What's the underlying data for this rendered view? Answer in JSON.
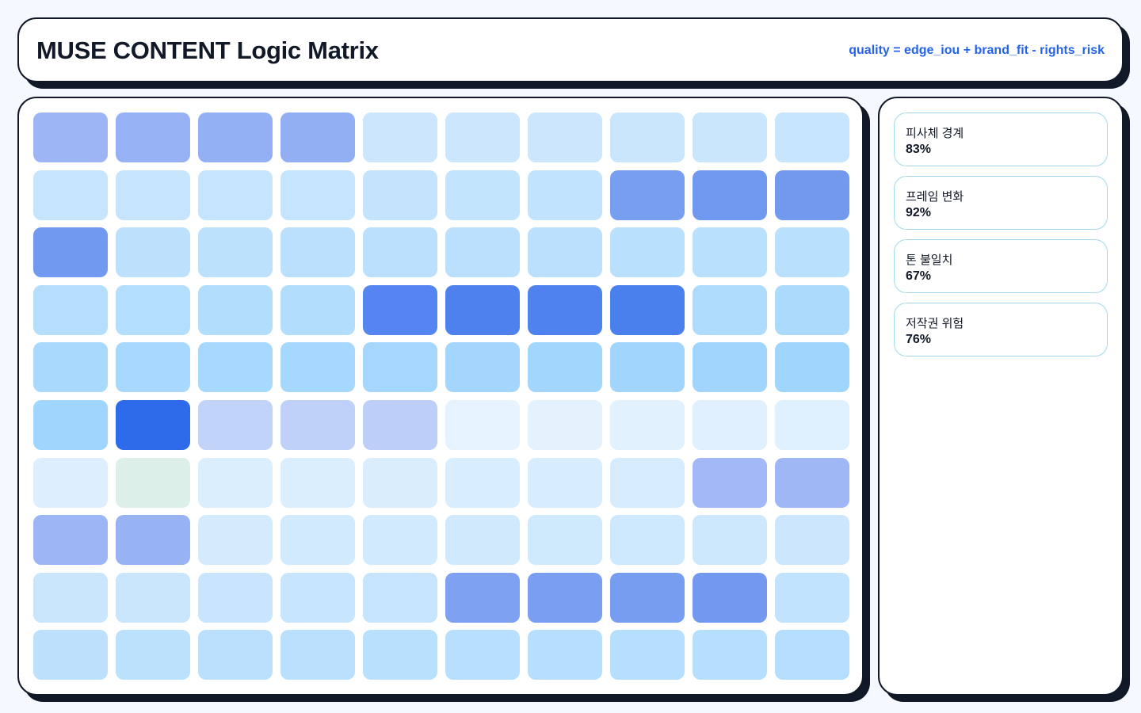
{
  "header": {
    "title": "MUSE CONTENT Logic Matrix",
    "formula": "quality = edge_iou + brand_fit - rights_risk"
  },
  "matrix": {
    "cells": [
      [
        "#9db5f5",
        "#97b2f4",
        "#94b0f4",
        "#92aff3",
        "#cce6fd",
        "#cce6fd",
        "#cbe6fd",
        "#cae6fd",
        "#c9e6fd",
        "#c7e5fd"
      ],
      [
        "#c6e5fd",
        "#c6e5fd",
        "#c5e4fd",
        "#c5e4fd",
        "#c4e4fd",
        "#c3e4fd",
        "#c2e3fd",
        "#789ef0",
        "#6f98ef",
        "#7399ef"
      ],
      [
        "#7099ef",
        "#bde1fd",
        "#bce1fd",
        "#bbe0fd",
        "#bbe0fd",
        "#bae0fd",
        "#bae0fd",
        "#b9e0fd",
        "#b9e0fd",
        "#b9e0fd"
      ],
      [
        "#b5defd",
        "#b4defd",
        "#b3ddfd",
        "#b2ddfd",
        "#5585f0",
        "#4e80ee",
        "#4f82ef",
        "#4a7fee",
        "#afdcfd",
        "#acdafd"
      ],
      [
        "#a9d9fd",
        "#a8d8fd",
        "#a7d8fd",
        "#a6d7fd",
        "#a5d7fd",
        "#a4d6fd",
        "#a3d6fd",
        "#a2d5fd",
        "#a1d5fd",
        "#a0d5fd"
      ],
      [
        "#a0d5fd",
        "#2d6bea",
        "#c1d3f9",
        "#bfd1f9",
        "#bdcff8",
        "#e6f3fe",
        "#e4f2fe",
        "#e2f1fe",
        "#e1f0fe",
        "#dff0fe"
      ],
      [
        "#ddeffe",
        "#dcefe9",
        "#dbeefd",
        "#daeefd",
        "#d9edfd",
        "#d8edfd",
        "#d7ecfd",
        "#d6ecfd",
        "#a3b8f6",
        "#9fb7f5"
      ],
      [
        "#9bb5f5",
        "#98b3f4",
        "#d3ebfd",
        "#d2eafd",
        "#d1eafd",
        "#d0e9fd",
        "#cfe9fd",
        "#cee8fd",
        "#cde8fd",
        "#cce7fd"
      ],
      [
        "#cae6fd",
        "#c9e6fd",
        "#c8e5fd",
        "#c7e5fd",
        "#c6e5fd",
        "#7ea2f1",
        "#7a9ff1",
        "#779df1",
        "#7299ef",
        "#c2e3fd"
      ],
      [
        "#bde1fd",
        "#bce1fd",
        "#bbe0fd",
        "#bae0fd",
        "#b9e0fd",
        "#b8dffd",
        "#b7dffd",
        "#b6defd",
        "#b6defd",
        "#b5ddfd"
      ]
    ]
  },
  "metrics": [
    {
      "label": "피사체 경계",
      "value": "83%"
    },
    {
      "label": "프레임 변화",
      "value": "92%"
    },
    {
      "label": "톤 불일치",
      "value": "67%"
    },
    {
      "label": "저작권 위험",
      "value": "76%"
    }
  ]
}
